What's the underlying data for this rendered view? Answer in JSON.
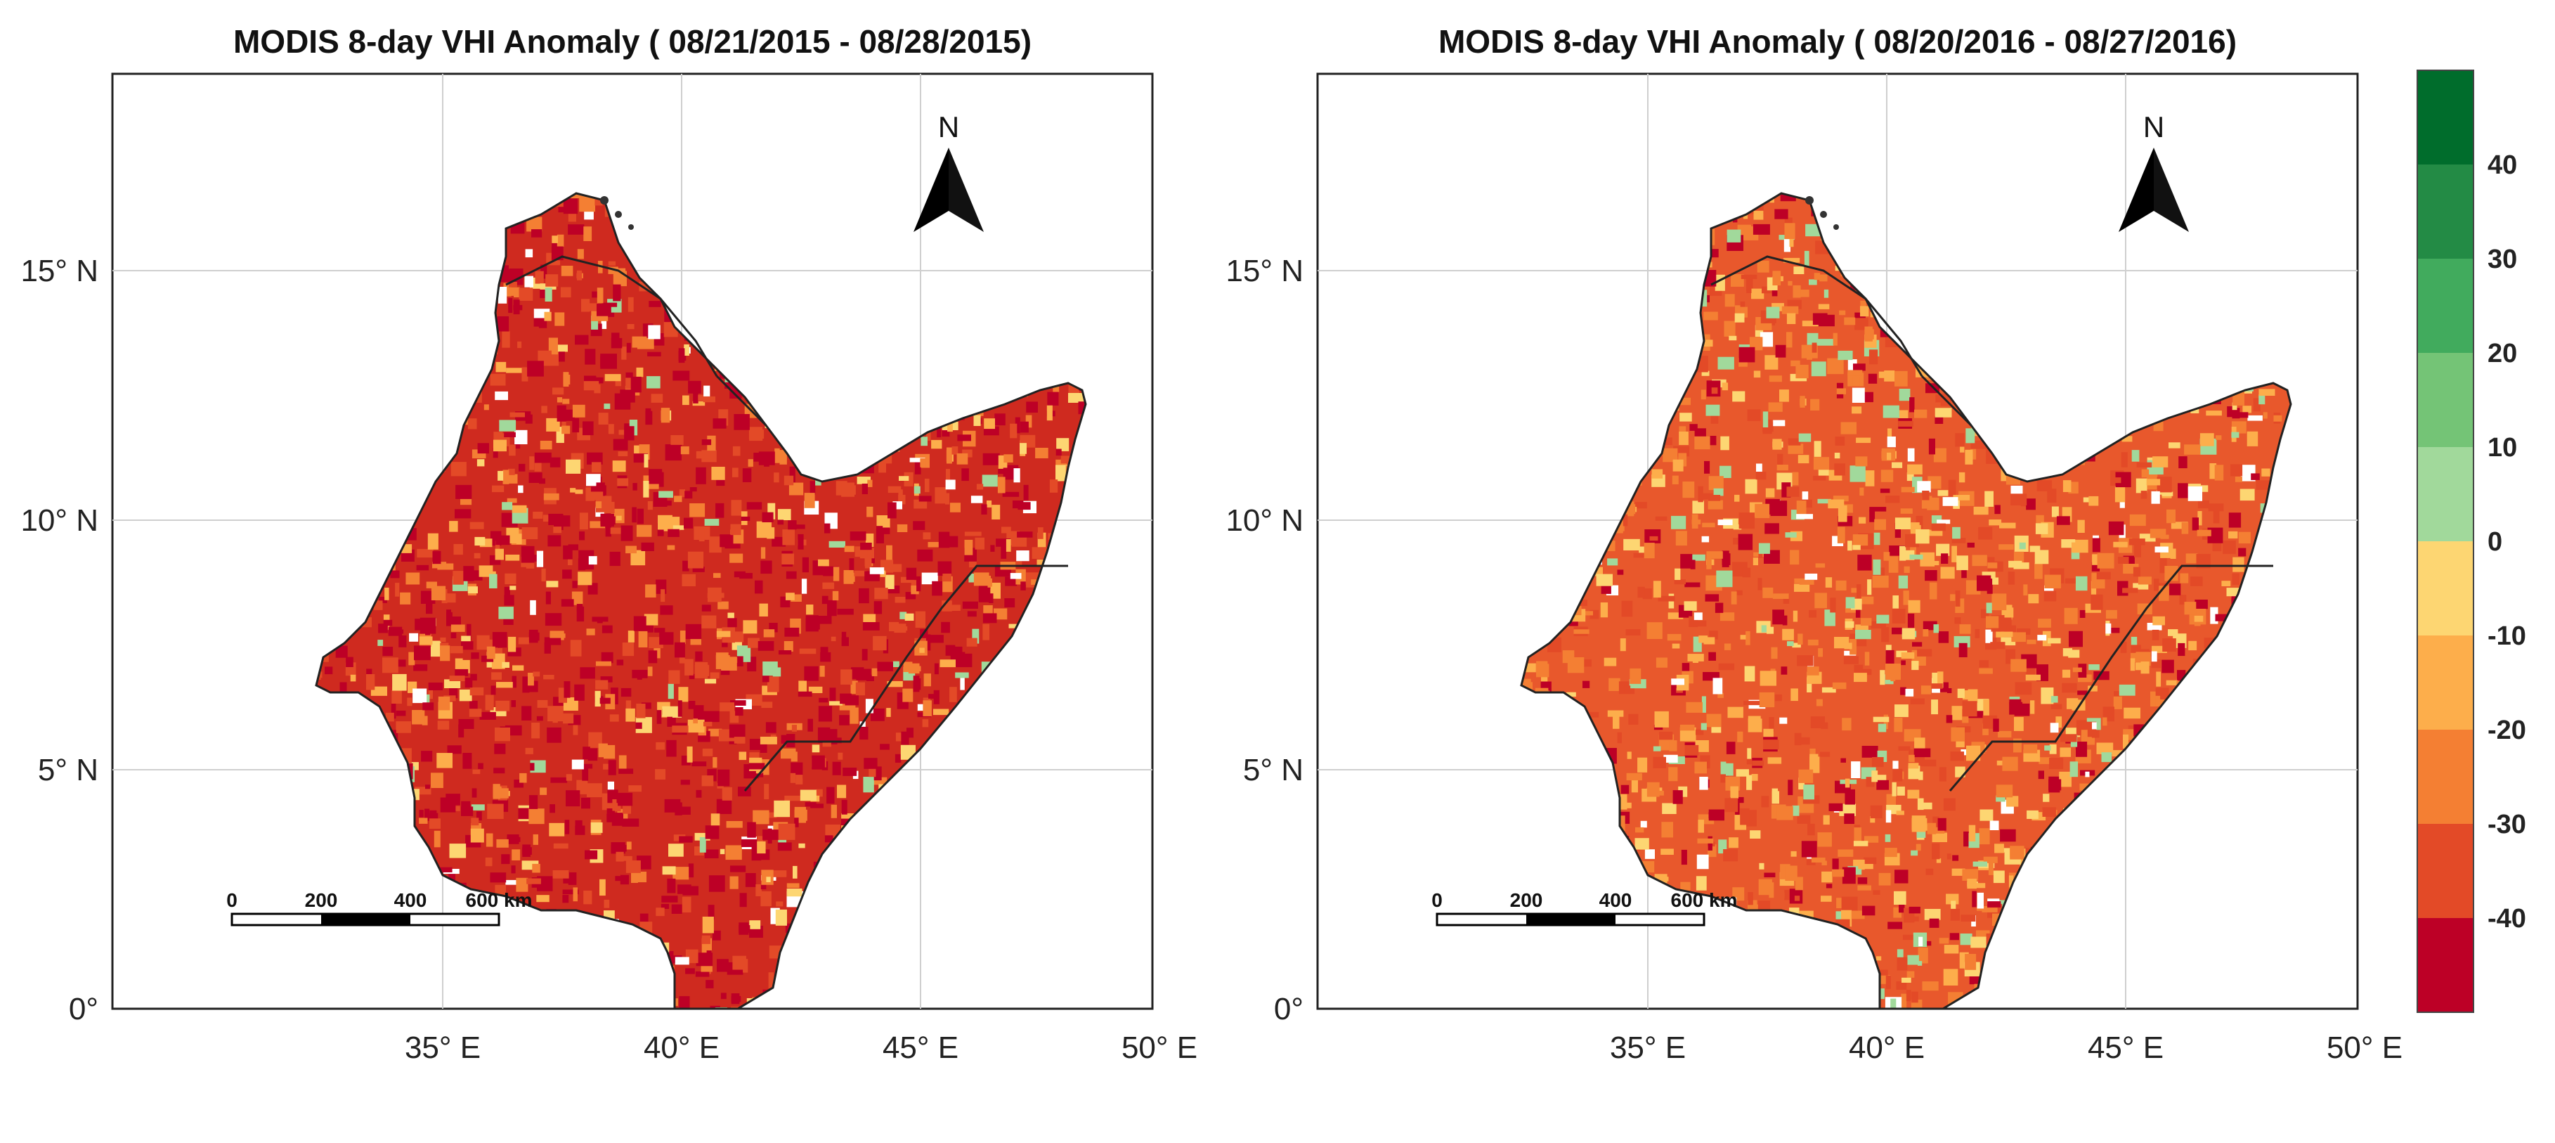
{
  "panels": [
    {
      "title": "MODIS 8-day VHI Anomaly ( 08/21/2015 - 08/28/2015)",
      "x_ticks": [
        "35° E",
        "40° E",
        "45° E",
        "50° E"
      ],
      "y_ticks": [
        "15° N",
        "10° N",
        "5° N",
        "0°"
      ],
      "north_label": "N",
      "scale_labels": [
        "0",
        "200",
        "400",
        "600 km"
      ]
    },
    {
      "title": "MODIS 8-day VHI Anomaly ( 08/20/2016 - 08/27/2016)",
      "x_ticks": [
        "35° E",
        "40° E",
        "45° E",
        "50° E"
      ],
      "y_ticks": [
        "15° N",
        "10° N",
        "5° N",
        "0°"
      ],
      "north_label": "N",
      "scale_labels": [
        "0",
        "200",
        "400",
        "600 km"
      ]
    }
  ],
  "colorbar": {
    "labels": [
      "40",
      "30",
      "20",
      "10",
      "0",
      "-10",
      "-20",
      "-30",
      "-40"
    ],
    "colors": [
      "#006d2c",
      "#238b45",
      "#41ab5d",
      "#74c476",
      "#a1d99b",
      "#fdd672",
      "#fdae4b",
      "#f47f33",
      "#e34a27",
      "#bd0026"
    ]
  },
  "palette": {
    "land_base": "#d7301f",
    "border": "#222222",
    "grid": "#cccccc"
  }
}
